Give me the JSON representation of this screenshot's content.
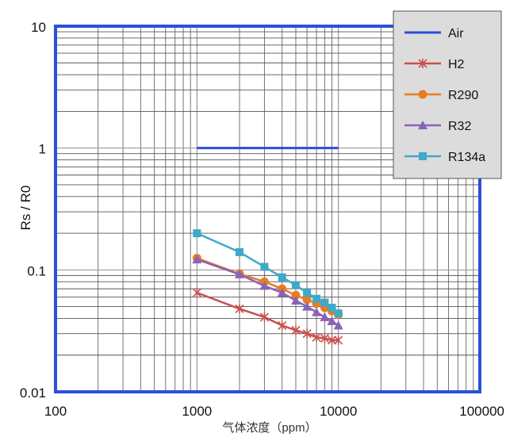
{
  "chart_data": {
    "type": "line",
    "xlabel": "气体浓度（ppm）",
    "ylabel": "Rs / R0",
    "xscale": "log",
    "yscale": "log",
    "xlim": [
      100,
      100000
    ],
    "ylim": [
      0.01,
      10
    ],
    "xticks": [
      100,
      1000,
      10000,
      100000
    ],
    "xtick_labels": [
      "100",
      "1000",
      "10000",
      "100000"
    ],
    "yticks": [
      0.01,
      0.1,
      1,
      10
    ],
    "ytick_labels": [
      "0.01",
      "0.1",
      "1",
      "10"
    ],
    "grid": true,
    "legend_position": "top-right",
    "series": [
      {
        "name": "Air",
        "color": "#2b4fd8",
        "marker": "none",
        "x": [
          1000,
          10000
        ],
        "y": [
          1.0,
          1.0
        ]
      },
      {
        "name": "H2",
        "color": "#c8504e",
        "marker": "star",
        "x": [
          1000,
          2000,
          3000,
          4000,
          5000,
          6000,
          7000,
          8000,
          9000,
          10000
        ],
        "y": [
          0.065,
          0.048,
          0.041,
          0.035,
          0.032,
          0.03,
          0.028,
          0.0275,
          0.0265,
          0.0265
        ]
      },
      {
        "name": "R290",
        "color": "#e87c21",
        "marker": "circle",
        "x": [
          1000,
          2000,
          3000,
          4000,
          5000,
          6000,
          7000,
          8000,
          9000,
          10000
        ],
        "y": [
          0.125,
          0.093,
          0.08,
          0.07,
          0.062,
          0.057,
          0.053,
          0.049,
          0.046,
          0.043
        ]
      },
      {
        "name": "R32",
        "color": "#8a63b8",
        "marker": "triangle",
        "x": [
          1000,
          2000,
          3000,
          4000,
          5000,
          6000,
          7000,
          8000,
          9000,
          10000
        ],
        "y": [
          0.122,
          0.092,
          0.074,
          0.065,
          0.056,
          0.05,
          0.045,
          0.041,
          0.038,
          0.035
        ]
      },
      {
        "name": "R134a",
        "color": "#3fa9c9",
        "marker": "square",
        "x": [
          1000,
          2000,
          3000,
          4000,
          5000,
          6000,
          7000,
          8000,
          9000,
          10000
        ],
        "y": [
          0.2,
          0.14,
          0.106,
          0.087,
          0.075,
          0.065,
          0.058,
          0.054,
          0.049,
          0.044
        ]
      }
    ]
  }
}
